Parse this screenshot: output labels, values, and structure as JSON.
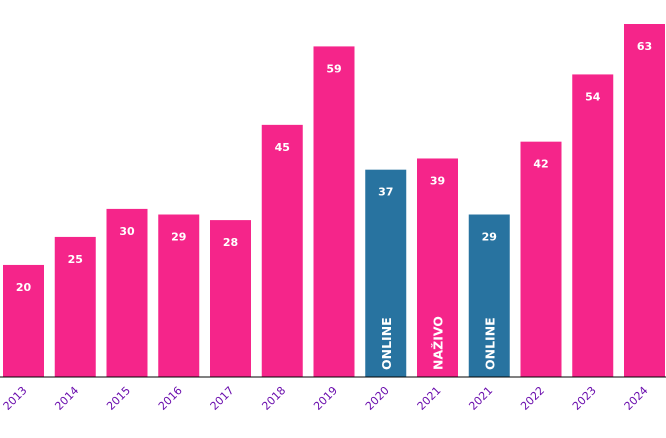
{
  "chart_data": {
    "type": "bar",
    "title": "",
    "xlabel": "",
    "ylabel": "",
    "ylim": [
      0,
      63
    ],
    "grid": false,
    "legend": "none",
    "categories": [
      "2013",
      "2014",
      "2015",
      "2016",
      "2017",
      "2018",
      "2019",
      "2020",
      "2021",
      "2021",
      "2022",
      "2023",
      "2024"
    ],
    "values": [
      20,
      25,
      30,
      29,
      28,
      45,
      59,
      37,
      39,
      29,
      42,
      54,
      63
    ],
    "value_labels": [
      "20",
      "25",
      "30",
      "29",
      "28",
      "45",
      "59",
      "37",
      "39",
      "29",
      "42",
      "54",
      "63"
    ],
    "bar_annotations": [
      "",
      "",
      "",
      "",
      "",
      "",
      "",
      "ONLINE",
      "NAŽIVO",
      "ONLINE",
      "",
      "",
      ""
    ],
    "bar_colors": [
      "#f5258a",
      "#f5258a",
      "#f5258a",
      "#f5258a",
      "#f5258a",
      "#f5258a",
      "#f5258a",
      "#2873a0",
      "#f5258a",
      "#2873a0",
      "#f5258a",
      "#f5258a",
      "#f5258a"
    ],
    "tick_label_color": "#6a0dad",
    "axis_color": "#000000"
  }
}
